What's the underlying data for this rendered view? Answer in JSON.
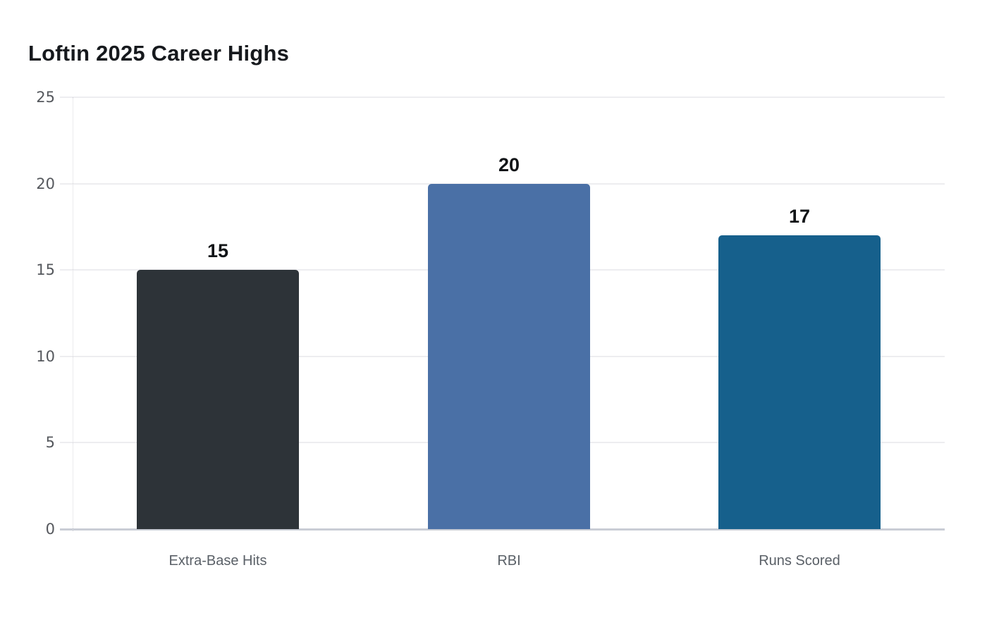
{
  "title": "Loftin 2025 Career Highs",
  "chart_data": {
    "type": "bar",
    "title": "Loftin 2025 Career Highs",
    "categories": [
      "Extra-Base Hits",
      "RBI",
      "Runs Scored"
    ],
    "values": [
      15,
      20,
      17
    ],
    "data_labels": [
      "15",
      "20",
      "17"
    ],
    "bar_colors": [
      "#2d3338",
      "#4a70a6",
      "#16608c"
    ],
    "xlabel": "",
    "ylabel": "",
    "ylim": [
      0,
      25
    ],
    "yticks": [
      0,
      5,
      10,
      15,
      20,
      25
    ],
    "ytick_labels": [
      "0",
      "5",
      "10",
      "15",
      "20",
      "25"
    ],
    "grid": "horizontal-light",
    "legend_position": "none"
  },
  "colors": {
    "background": "#ffffff",
    "title_text": "#16191d",
    "value_label_text": "#111417",
    "tick_label_text": "#55585d",
    "category_label_text": "#5a6067",
    "gridline": "#ededf0",
    "axis_line": "#c9cdd5"
  }
}
